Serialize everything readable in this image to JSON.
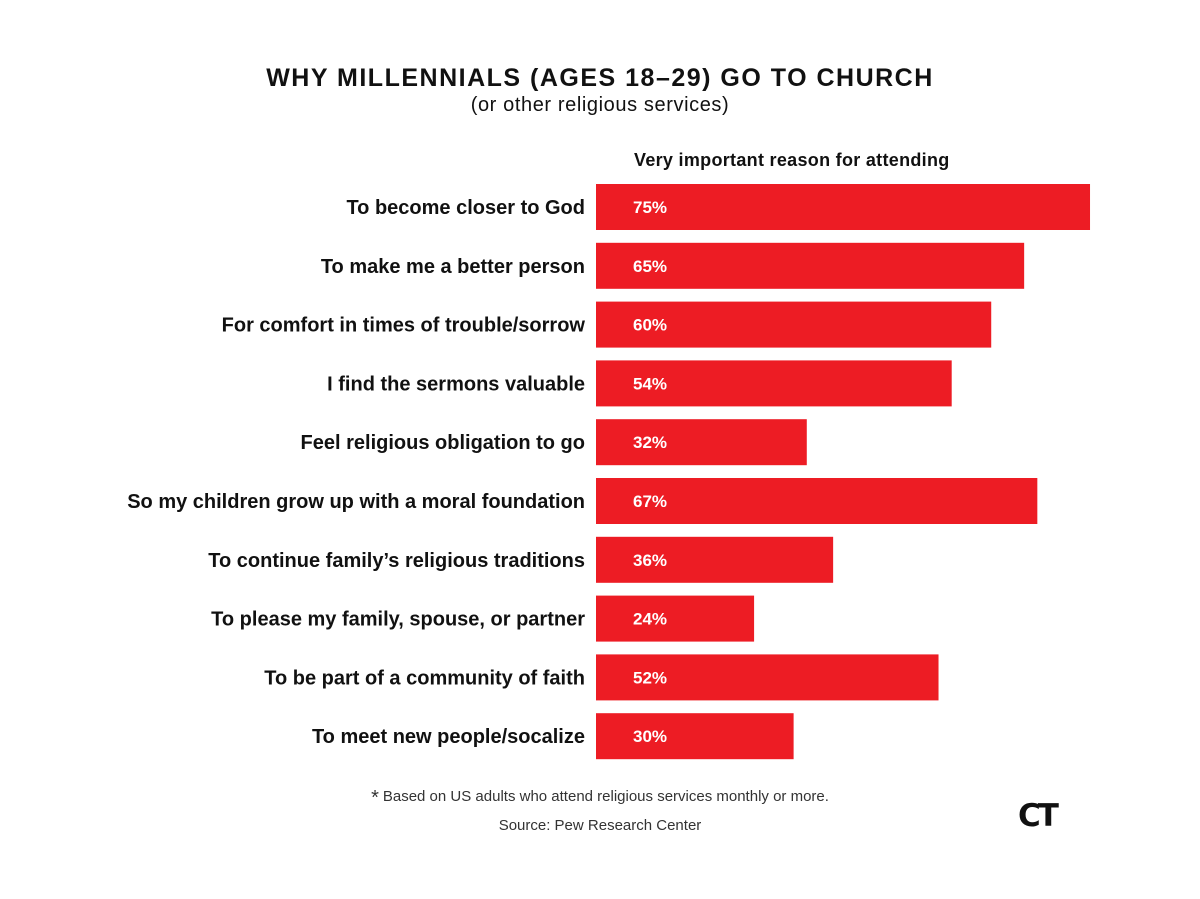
{
  "header": {
    "title": "WHY MILLENNIALS (AGES 18–29) GO TO CHURCH",
    "subtitle": "(or other religious services)",
    "column_header": "Very important reason for attending"
  },
  "footer": {
    "asterisk": "*",
    "note": "Based on US adults who attend religious services monthly or more.",
    "source": "Source: Pew Research Center",
    "logo_text": "CT"
  },
  "colors": {
    "bar": "#ed1c24",
    "bar_label": "#ffffff",
    "category_text": "#111111"
  },
  "chart_data": {
    "type": "bar",
    "orientation": "horizontal",
    "title": "WHY MILLENNIALS (AGES 18–29) GO TO CHURCH",
    "subtitle": "(or other religious services)",
    "value_axis_label": "Very important reason for attending",
    "unit": "%",
    "xlim": [
      0,
      100
    ],
    "grid": false,
    "categories": [
      "To become closer to God",
      "To make me a better person",
      "For comfort in times of trouble/sorrow",
      "I find the sermons valuable",
      "Feel religious obligation to go",
      "So my children grow up with a moral foundation",
      "To continue family’s religious traditions",
      "To please my family, spouse, or partner",
      "To be part of a community of faith",
      "To meet new people/socalize"
    ],
    "values": [
      75,
      65,
      60,
      54,
      32,
      67,
      36,
      24,
      52,
      30
    ],
    "labels": [
      "75%",
      "65%",
      "60%",
      "54%",
      "32%",
      "67%",
      "36%",
      "24%",
      "52%",
      "30%"
    ]
  }
}
